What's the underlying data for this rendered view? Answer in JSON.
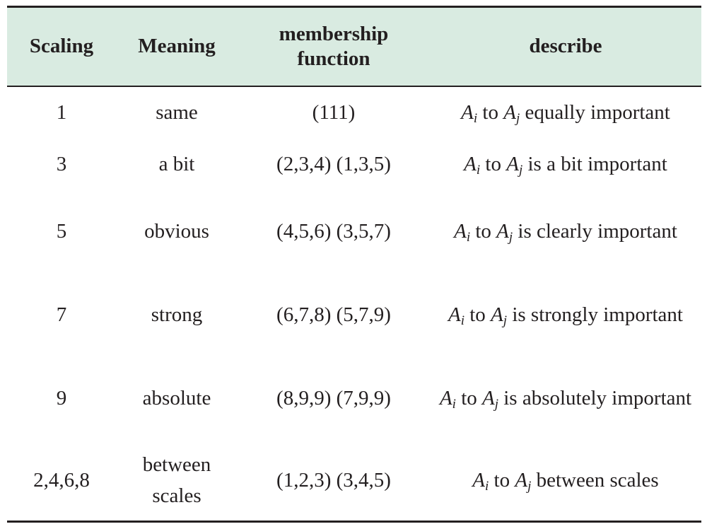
{
  "table": {
    "headers": {
      "scaling": "Scaling",
      "meaning": "Meaning",
      "membership": "membership function",
      "describe": "describe"
    },
    "var_a": "A",
    "sub_i": "i",
    "sub_j": "j",
    "rows": [
      {
        "scaling": "1",
        "meaning": "same",
        "membership": "(111)",
        "describe_mid": " to ",
        "describe_tail": " equally important"
      },
      {
        "scaling": "3",
        "meaning": "a bit",
        "membership": "(2,3,4) (1,3,5)",
        "describe_mid": " to ",
        "describe_tail": " is a bit important"
      },
      {
        "scaling": "5",
        "meaning": "obvious",
        "membership": "(4,5,6) (3,5,7)",
        "describe_mid": " to ",
        "describe_tail": " is clearly important"
      },
      {
        "scaling": "7",
        "meaning": "strong",
        "membership": "(6,7,8) (5,7,9)",
        "describe_mid": " to ",
        "describe_tail": " is strongly important"
      },
      {
        "scaling": "9",
        "meaning": "absolute",
        "membership": "(8,9,9) (7,9,9)",
        "describe_mid": " to ",
        "describe_tail": " is absolutely important"
      },
      {
        "scaling": "2,4,6,8",
        "meaning": "between scales",
        "membership": "(1,2,3) (3,4,5)",
        "describe_mid": " to ",
        "describe_tail": " between scales"
      }
    ]
  }
}
